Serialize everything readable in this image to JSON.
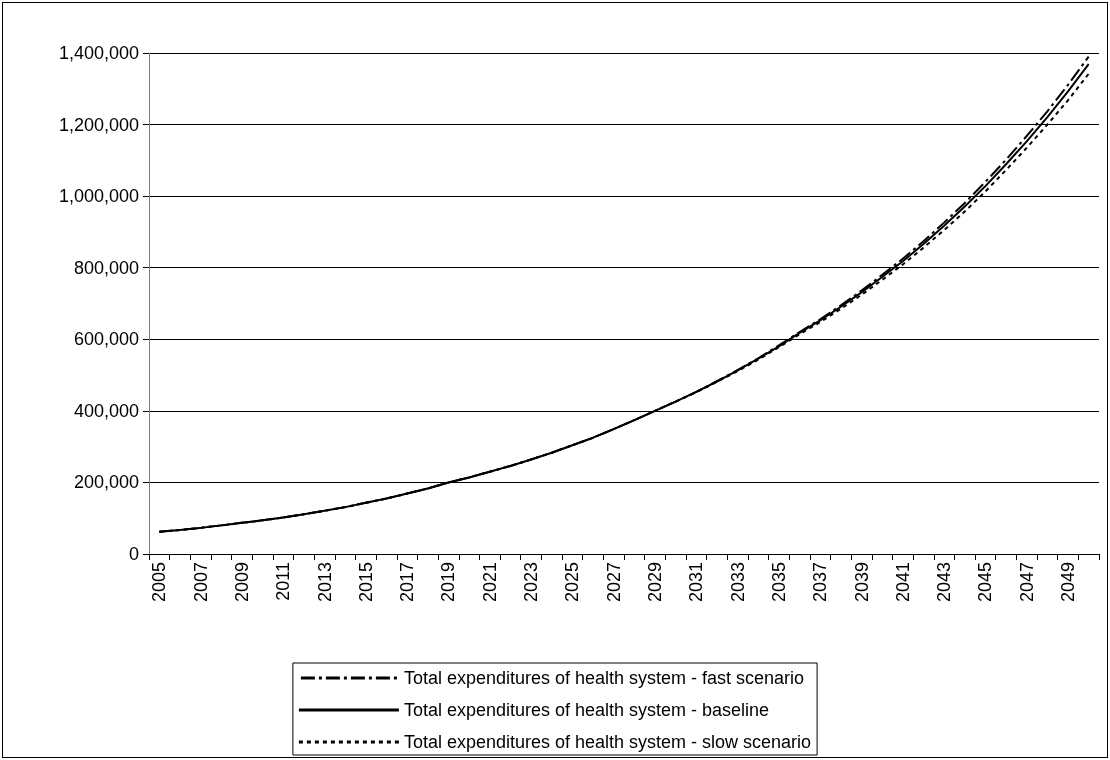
{
  "chart_data": {
    "type": "line",
    "categories": [
      "2005",
      null,
      "2007",
      null,
      "2009",
      null,
      "2011",
      null,
      "2013",
      null,
      "2015",
      null,
      "2017",
      null,
      "2019",
      null,
      "2021",
      null,
      "2023",
      null,
      "2025",
      null,
      "2027",
      null,
      "2029",
      null,
      "2031",
      null,
      "2033",
      null,
      "2035",
      null,
      "2037",
      null,
      "2039",
      null,
      "2041",
      null,
      "2043",
      null,
      "2045",
      null,
      "2047",
      null,
      "2049",
      null
    ],
    "series": [
      {
        "name": "Total expenditures of health system - fast scenario",
        "color": "#000000",
        "line_style": "dashed",
        "values": [
          62000,
          67000,
          73000,
          80000,
          87000,
          94000,
          102000,
          111000,
          121000,
          131000,
          143000,
          155000,
          169000,
          183000,
          200000,
          214000,
          230000,
          246000,
          264000,
          283000,
          304000,
          325000,
          349000,
          374000,
          400000,
          426000,
          453000,
          483000,
          514000,
          547000,
          583000,
          620000,
          656000,
          695000,
          736000,
          780000,
          825000,
          874000,
          926000,
          981000,
          1040000,
          1102000,
          1168000,
          1237000,
          1311000,
          1390000
        ]
      },
      {
        "name": "Total expenditures of health system - baseline",
        "color": "#000000",
        "line_style": "solid",
        "values": [
          62000,
          67000,
          73000,
          80000,
          87000,
          94000,
          102000,
          111000,
          121000,
          131000,
          143000,
          155000,
          169000,
          183000,
          200000,
          214000,
          230000,
          246000,
          264000,
          283000,
          304000,
          325000,
          349000,
          374000,
          400000,
          426000,
          453000,
          482000,
          513000,
          546000,
          580000,
          618000,
          653000,
          691000,
          731000,
          774000,
          818000,
          866000,
          917000,
          971000,
          1028000,
          1089000,
          1153000,
          1221000,
          1293000,
          1369000
        ]
      },
      {
        "name": "Total expenditures of health system - slow scenario",
        "color": "#000000",
        "line_style": "dotted",
        "values": [
          62000,
          67000,
          73000,
          80000,
          87000,
          94000,
          102000,
          111000,
          121000,
          131000,
          143000,
          155000,
          169000,
          183000,
          200000,
          214000,
          230000,
          246000,
          264000,
          283000,
          304000,
          325000,
          349000,
          374000,
          400000,
          426000,
          452000,
          481000,
          511000,
          543000,
          578000,
          614000,
          648000,
          685000,
          724000,
          766000,
          809000,
          856000,
          905000,
          957000,
          1013000,
          1073000,
          1135000,
          1200000,
          1268000,
          1342000
        ]
      }
    ],
    "ylim": [
      0,
      1400000
    ],
    "yticks": [
      0,
      {
        "value": 200000,
        "label": "200,000"
      },
      {
        "value": 400000,
        "label": "400,000"
      },
      {
        "value": 600000,
        "label": "600,000"
      },
      {
        "value": 800000,
        "label": "800,000"
      },
      {
        "value": 1000000,
        "label": "1,000,000"
      },
      {
        "value": 1200000,
        "label": "1,200,000"
      },
      {
        "value": 1400000,
        "label": "1,400,000"
      }
    ],
    "grid": "y",
    "legend": "bottom",
    "marker": "none"
  }
}
